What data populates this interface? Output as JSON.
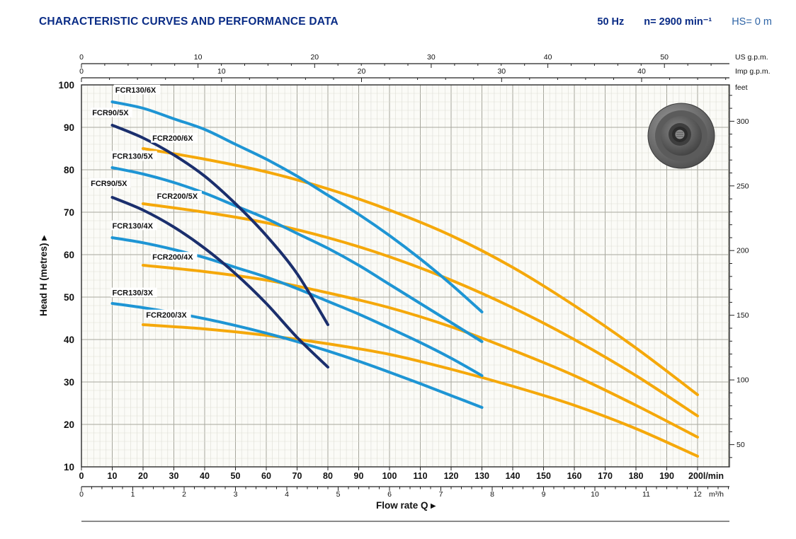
{
  "header": {
    "title": "CHARACTERISTIC CURVES AND PERFORMANCE DATA",
    "frequency": "50 Hz",
    "speed": "n= 2900 min⁻¹",
    "suction_head": "HS= 0 m"
  },
  "chart_data": {
    "type": "line",
    "title": "Pump characteristic curves: Head H vs Flow rate Q",
    "xlabel": "Flow rate Q",
    "ylabel": "Head H (metres)",
    "arrow": "▸",
    "x_axes": {
      "lmin": {
        "unit": "l/min",
        "minor_step": 2,
        "major_ticks": [
          0,
          10,
          20,
          30,
          40,
          50,
          60,
          70,
          80,
          90,
          100,
          110,
          120,
          130,
          140,
          150,
          160,
          170,
          180,
          190,
          200
        ],
        "end_label": "200l/min"
      },
      "m3h": {
        "unit": "m³/h",
        "minor_step": 0.2,
        "lmin_per_unit": 16.667,
        "major_ticks": [
          0,
          1,
          2,
          3,
          4,
          5,
          6,
          7,
          8,
          9,
          10,
          11,
          12
        ]
      },
      "us_gpm": {
        "unit": "US g.p.m.",
        "minor_step": 2,
        "lmin_per_unit": 3.785,
        "major_ticks": [
          0,
          10,
          20,
          30,
          40,
          50
        ]
      },
      "imp_gpm": {
        "unit": "Imp g.p.m.",
        "minor_step": 2,
        "lmin_per_unit": 4.546,
        "major_ticks": [
          0,
          10,
          20,
          30,
          40
        ]
      }
    },
    "y_axes": {
      "metres": {
        "unit": "m",
        "min": 10,
        "max": 100,
        "minor_step": 2,
        "major_ticks": [
          10,
          20,
          30,
          40,
          50,
          60,
          70,
          80,
          90,
          100
        ]
      },
      "feet": {
        "unit": "feet",
        "minor_step": 10,
        "m_per_unit": 0.3048,
        "major_ticks": [
          50,
          100,
          150,
          200,
          250,
          300
        ]
      }
    },
    "colors": {
      "fcr130": "#1e95d4",
      "fcr90": "#1b2f6d",
      "fcr200": "#f5a80a"
    },
    "series": [
      {
        "name": "FCR200/6X",
        "color": "fcr200",
        "label_pos": [
          23,
          86.8
        ],
        "points": [
          [
            20,
            85
          ],
          [
            40,
            82.5
          ],
          [
            60,
            79.5
          ],
          [
            80,
            75.5
          ],
          [
            100,
            70.5
          ],
          [
            120,
            64.5
          ],
          [
            140,
            57
          ],
          [
            160,
            48
          ],
          [
            180,
            38
          ],
          [
            200,
            27
          ]
        ]
      },
      {
        "name": "FCR200/5X",
        "color": "fcr200",
        "label_pos": [
          24.5,
          73.2
        ],
        "points": [
          [
            20,
            72
          ],
          [
            40,
            70
          ],
          [
            60,
            67.5
          ],
          [
            80,
            64
          ],
          [
            100,
            59.5
          ],
          [
            120,
            54
          ],
          [
            140,
            47.5
          ],
          [
            160,
            40
          ],
          [
            180,
            31.5
          ],
          [
            200,
            22
          ]
        ]
      },
      {
        "name": "FCR200/4X",
        "color": "fcr200",
        "label_pos": [
          23,
          58.8
        ],
        "points": [
          [
            20,
            57.5
          ],
          [
            40,
            56
          ],
          [
            60,
            54
          ],
          [
            80,
            51
          ],
          [
            100,
            47.5
          ],
          [
            120,
            43
          ],
          [
            140,
            37.5
          ],
          [
            160,
            31.5
          ],
          [
            180,
            24.5
          ],
          [
            200,
            17
          ]
        ]
      },
      {
        "name": "FCR200/3X",
        "color": "fcr200",
        "label_pos": [
          21,
          45.2
        ],
        "points": [
          [
            20,
            43.5
          ],
          [
            40,
            42.5
          ],
          [
            60,
            41
          ],
          [
            80,
            39
          ],
          [
            100,
            36.5
          ],
          [
            120,
            33
          ],
          [
            140,
            29
          ],
          [
            160,
            24.5
          ],
          [
            180,
            19
          ],
          [
            200,
            12.5
          ]
        ]
      },
      {
        "name": "FCR130/6X",
        "color": "fcr130",
        "label_pos": [
          11,
          98.2
        ],
        "points": [
          [
            10,
            96
          ],
          [
            20,
            94.5
          ],
          [
            30,
            92
          ],
          [
            40,
            89.5
          ],
          [
            50,
            86
          ],
          [
            60,
            82.5
          ],
          [
            70,
            78.5
          ],
          [
            80,
            74
          ],
          [
            90,
            69.5
          ],
          [
            100,
            64.5
          ],
          [
            110,
            59
          ],
          [
            120,
            53
          ],
          [
            130,
            46.5
          ]
        ]
      },
      {
        "name": "FCR130/5X",
        "color": "fcr130",
        "label_pos": [
          10,
          82.6
        ],
        "points": [
          [
            10,
            80.5
          ],
          [
            20,
            79
          ],
          [
            30,
            77
          ],
          [
            40,
            74.5
          ],
          [
            50,
            71.5
          ],
          [
            60,
            68.5
          ],
          [
            70,
            65
          ],
          [
            80,
            61.5
          ],
          [
            90,
            57.5
          ],
          [
            100,
            53
          ],
          [
            110,
            48.5
          ],
          [
            120,
            44
          ],
          [
            130,
            39.5
          ]
        ]
      },
      {
        "name": "FCR130/4X",
        "color": "fcr130",
        "label_pos": [
          10,
          66.2
        ],
        "points": [
          [
            10,
            64
          ],
          [
            20,
            62.8
          ],
          [
            30,
            61.2
          ],
          [
            40,
            59.3
          ],
          [
            50,
            57
          ],
          [
            60,
            54.7
          ],
          [
            70,
            52
          ],
          [
            80,
            49
          ],
          [
            90,
            46
          ],
          [
            100,
            42.7
          ],
          [
            110,
            39.3
          ],
          [
            120,
            35.6
          ],
          [
            130,
            31.5
          ]
        ]
      },
      {
        "name": "FCR130/3X",
        "color": "fcr130",
        "label_pos": [
          10,
          50.4
        ],
        "points": [
          [
            10,
            48.5
          ],
          [
            20,
            47.5
          ],
          [
            30,
            46.3
          ],
          [
            40,
            44.9
          ],
          [
            50,
            43.3
          ],
          [
            60,
            41.5
          ],
          [
            70,
            39.5
          ],
          [
            80,
            37.3
          ],
          [
            90,
            34.9
          ],
          [
            100,
            32.3
          ],
          [
            110,
            29.6
          ],
          [
            120,
            26.8
          ],
          [
            130,
            24
          ]
        ]
      },
      {
        "name": "FCR90/5X",
        "color": "fcr90",
        "label_pos": [
          3.5,
          92.8
        ],
        "points": [
          [
            10,
            90.5
          ],
          [
            20,
            87.5
          ],
          [
            30,
            83.5
          ],
          [
            40,
            78.5
          ],
          [
            50,
            72
          ],
          [
            60,
            64.5
          ],
          [
            70,
            55.5
          ],
          [
            80,
            43.5
          ]
        ]
      },
      {
        "name": "FCR90/5X",
        "color": "fcr90",
        "label_pos": [
          3,
          76.2
        ],
        "points": [
          [
            10,
            73.5
          ],
          [
            20,
            70.5
          ],
          [
            30,
            66.5
          ],
          [
            40,
            61.5
          ],
          [
            50,
            55.5
          ],
          [
            60,
            48.5
          ],
          [
            70,
            40.5
          ],
          [
            80,
            33.5
          ]
        ]
      }
    ]
  }
}
